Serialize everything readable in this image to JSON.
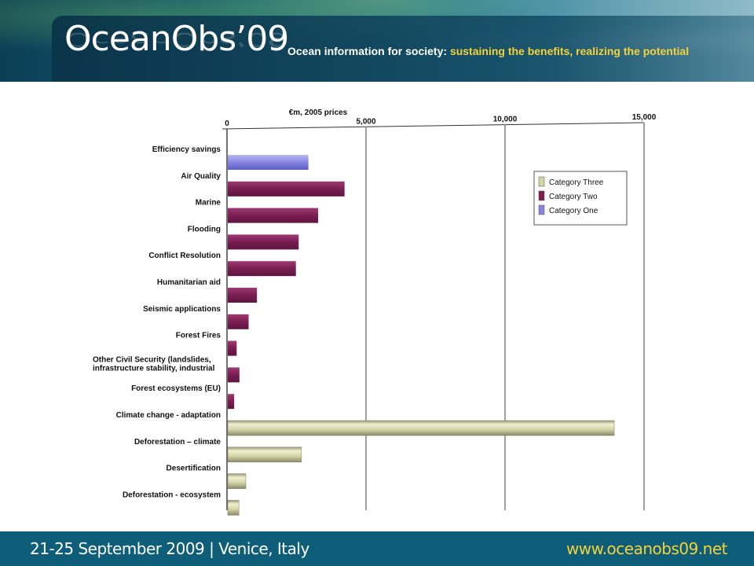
{
  "header": {
    "logo": "OceanObs’09",
    "tagline_lead": "Ocean information for society:",
    "tagline_highlight": "sustaining the benefits, realizing the potential"
  },
  "footer": {
    "event": "21-25 September 2009 | Venice, Italy",
    "url": "www.oceanobs09.net"
  },
  "colors": {
    "category_one": "#8585e0",
    "category_two": "#7a1e52",
    "category_three": "#d4d4a6"
  },
  "chart_data": {
    "type": "bar",
    "orientation": "horizontal",
    "title": "€m, 2005 prices",
    "xlim": [
      0,
      15000
    ],
    "ticks": [
      {
        "value": 0,
        "label": "0"
      },
      {
        "value": 5000,
        "label": "5,000"
      },
      {
        "value": 10000,
        "label": "10,000"
      },
      {
        "value": 15000,
        "label": "15,000"
      }
    ],
    "legend": {
      "position": "top-right",
      "entries": [
        {
          "name": "Category Three",
          "series": "three"
        },
        {
          "name": "Category Two",
          "series": "two"
        },
        {
          "name": "Category One",
          "series": "one"
        }
      ]
    },
    "categories": [
      {
        "label": "Efficiency savings",
        "value": 2900,
        "series": "one"
      },
      {
        "label": "Air Quality",
        "value": 4200,
        "series": "two"
      },
      {
        "label": "Marine",
        "value": 3250,
        "series": "two"
      },
      {
        "label": "Flooding",
        "value": 2550,
        "series": "two"
      },
      {
        "label": "Conflict Resolution",
        "value": 2450,
        "series": "two"
      },
      {
        "label": "Humanitarian aid",
        "value": 1050,
        "series": "two"
      },
      {
        "label": "Seismic applications",
        "value": 750,
        "series": "two"
      },
      {
        "label": "Forest Fires",
        "value": 320,
        "series": "two"
      },
      {
        "label": "Other  Civil Security (landslides, infrastructure stability, industrial",
        "value": 420,
        "series": "two"
      },
      {
        "label": "Forest ecosystems (EU)",
        "value": 230,
        "series": "two"
      },
      {
        "label": "Climate change -  adaptation",
        "value": 13900,
        "series": "three"
      },
      {
        "label": "Deforestation – climate",
        "value": 2650,
        "series": "three"
      },
      {
        "label": "Desertification",
        "value": 650,
        "series": "three"
      },
      {
        "label": "Deforestation  -  ecosystem",
        "value": 400,
        "series": "three"
      }
    ]
  }
}
